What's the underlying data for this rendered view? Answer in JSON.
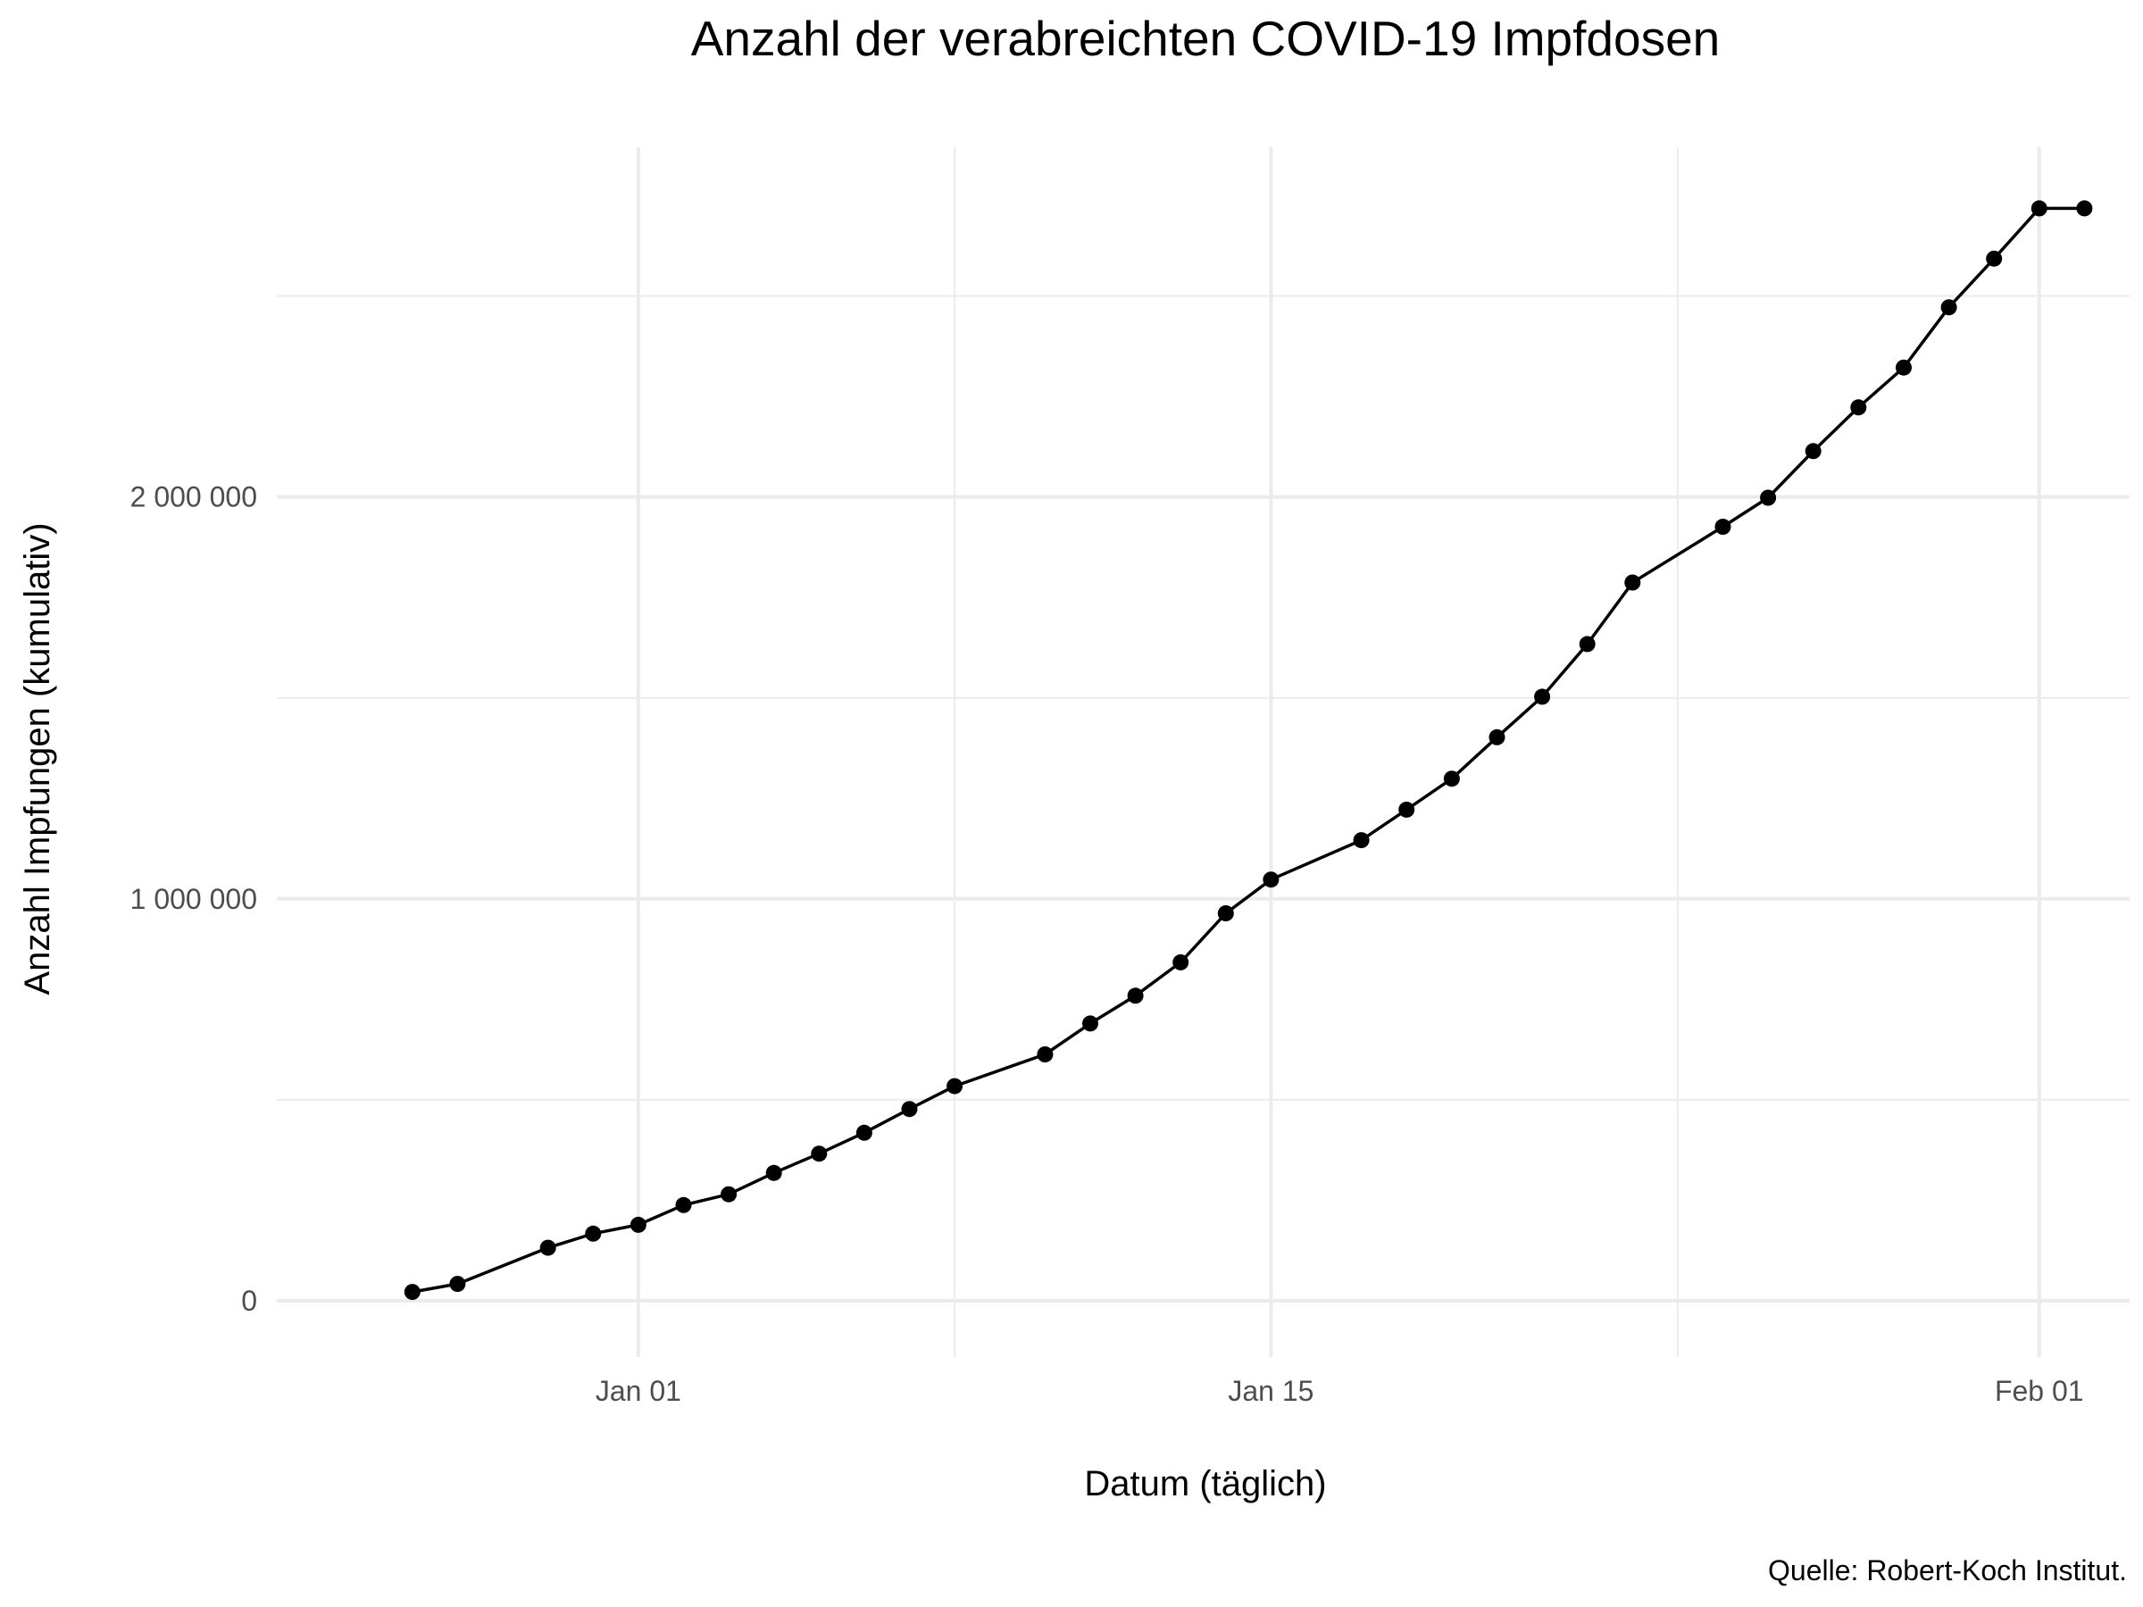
{
  "chart_data": {
    "type": "line",
    "title": "Anzahl der verabreichten COVID-19 Impfdosen",
    "xlabel": "Datum (täglich)",
    "ylabel": "Anzahl Impfungen (kumulativ)",
    "caption": "Quelle: Robert-Koch Institut.",
    "grid": true,
    "legend": "none",
    "xlim": [
      "2020-12-24",
      "2021-02-03"
    ],
    "ylim": [
      -140000,
      2870000
    ],
    "x_ticks": [
      {
        "date": "2021-01-01",
        "label": "Jan 01"
      },
      {
        "date": "2021-01-15",
        "label": "Jan 15"
      },
      {
        "date": "2021-02-01",
        "label": "Feb 01"
      }
    ],
    "x_minor_ticks": [
      "2021-01-08",
      "2021-01-24"
    ],
    "y_ticks": [
      {
        "value": 0,
        "label": "0"
      },
      {
        "value": 1000000,
        "label": "1 000 000"
      },
      {
        "value": 2000000,
        "label": "2 000 000"
      }
    ],
    "y_minor_ticks": [
      500000,
      1500000,
      2500000
    ],
    "series": [
      {
        "x": [
          "2020-12-27",
          "2020-12-28",
          "2020-12-30",
          "2020-12-31",
          "2021-01-01",
          "2021-01-02",
          "2021-01-03",
          "2021-01-04",
          "2021-01-05",
          "2021-01-06",
          "2021-01-07",
          "2021-01-08",
          "2021-01-10",
          "2021-01-11",
          "2021-01-12",
          "2021-01-13",
          "2021-01-14",
          "2021-01-15",
          "2021-01-17",
          "2021-01-18",
          "2021-01-19",
          "2021-01-20",
          "2021-01-21",
          "2021-01-22",
          "2021-01-23",
          "2021-01-25",
          "2021-01-26",
          "2021-01-27",
          "2021-01-28",
          "2021-01-29",
          "2021-01-30",
          "2021-01-31",
          "2021-02-01",
          "2021-02-02"
        ],
        "y": [
          22000,
          42000,
          132000,
          167000,
          189000,
          238000,
          265000,
          318000,
          366000,
          418000,
          477000,
          534000,
          613000,
          690000,
          759000,
          842000,
          964000,
          1048000,
          1146000,
          1222000,
          1299000,
          1402000,
          1503000,
          1634000,
          1787000,
          1926000,
          1998000,
          2114000,
          2223000,
          2322000,
          2472000,
          2593000,
          2718000,
          2718000
        ]
      }
    ]
  }
}
